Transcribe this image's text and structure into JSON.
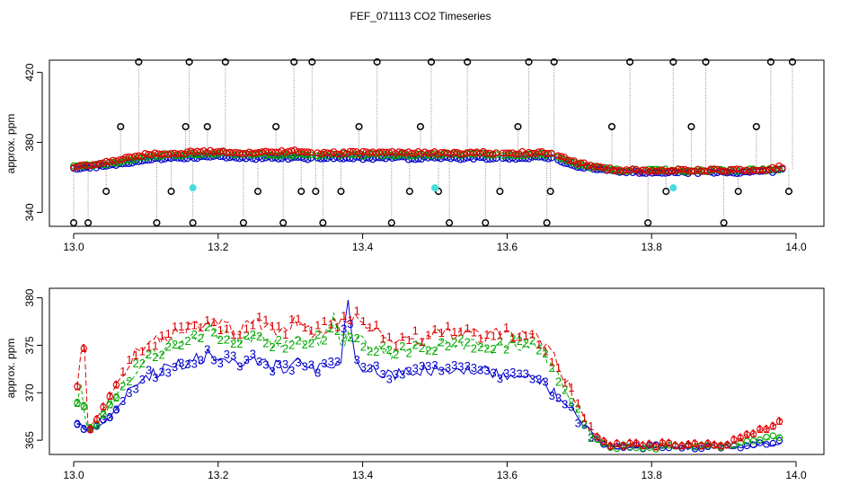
{
  "title": "FEF_071113  CO2 Timeseries",
  "colors": {
    "s1": "#dd0000",
    "s2": "#00aa00",
    "s3": "#0000cc",
    "outlier": "#000000",
    "flag": "#44dddd",
    "grey": "#888888"
  },
  "chart_data": [
    {
      "type": "scatter",
      "panel": "top",
      "title": "FEF_071113  CO2 Timeseries",
      "xlabel": "",
      "ylabel": "approx. ppm",
      "xlim": [
        13.0,
        14.0
      ],
      "ylim": [
        332,
        427
      ],
      "x_ticks": [
        "13.0",
        "13.2",
        "13.4",
        "13.6",
        "13.8",
        "14.0"
      ],
      "y_ticks": [
        "340",
        "380",
        "420"
      ],
      "y_tick_values": [
        340,
        380,
        420
      ],
      "series": [
        {
          "name": "1",
          "color": "#dd0000",
          "x": [
            13.0,
            13.05,
            13.1,
            13.15,
            13.2,
            13.25,
            13.3,
            13.33,
            13.38,
            13.45,
            13.5,
            13.55,
            13.6,
            13.66,
            13.7,
            13.75,
            13.8,
            13.85,
            13.9,
            13.95,
            13.98
          ],
          "y": [
            366,
            369,
            373,
            374,
            375,
            374,
            375,
            374,
            374,
            374,
            374,
            374,
            374,
            374,
            368,
            364,
            364,
            364,
            364,
            364,
            366
          ]
        },
        {
          "name": "2",
          "color": "#00aa00",
          "x": [
            13.0,
            13.05,
            13.1,
            13.15,
            13.2,
            13.25,
            13.3,
            13.33,
            13.38,
            13.45,
            13.5,
            13.55,
            13.6,
            13.66,
            13.7,
            13.75,
            13.8,
            13.85,
            13.9,
            13.95,
            13.98
          ],
          "y": [
            366,
            368,
            372,
            373,
            374,
            373,
            373,
            373,
            373,
            373,
            373,
            373,
            373,
            373,
            367,
            364,
            364,
            364,
            364,
            364,
            365
          ]
        },
        {
          "name": "3",
          "color": "#0000cc",
          "x": [
            13.0,
            13.05,
            13.1,
            13.15,
            13.2,
            13.25,
            13.3,
            13.33,
            13.38,
            13.45,
            13.5,
            13.55,
            13.6,
            13.66,
            13.7,
            13.75,
            13.8,
            13.85,
            13.9,
            13.95,
            13.98
          ],
          "y": [
            365,
            367,
            370,
            371,
            372,
            371,
            371,
            371,
            371,
            371,
            371,
            371,
            371,
            371,
            366,
            363,
            363,
            363,
            363,
            363,
            364
          ]
        }
      ],
      "outliers": {
        "x": [
          13.0,
          13.02,
          13.045,
          13.065,
          13.09,
          13.115,
          13.135,
          13.155,
          13.16,
          13.165,
          13.185,
          13.21,
          13.235,
          13.255,
          13.28,
          13.29,
          13.305,
          13.315,
          13.33,
          13.335,
          13.345,
          13.37,
          13.395,
          13.42,
          13.44,
          13.465,
          13.48,
          13.495,
          13.505,
          13.52,
          13.545,
          13.57,
          13.59,
          13.615,
          13.63,
          13.655,
          13.66,
          13.665,
          13.745,
          13.77,
          13.795,
          13.82,
          13.83,
          13.855,
          13.875,
          13.9,
          13.92,
          13.945,
          13.965,
          13.99,
          13.995
        ],
        "y": [
          334,
          334,
          352,
          389,
          426,
          334,
          352,
          389,
          426,
          334,
          389,
          426,
          334,
          352,
          389,
          334,
          426,
          352,
          426,
          352,
          334,
          352,
          389,
          426,
          334,
          352,
          389,
          426,
          352,
          334,
          426,
          334,
          352,
          389,
          426,
          334,
          352,
          426,
          389,
          426,
          334,
          352,
          426,
          389,
          426,
          334,
          352,
          389,
          426,
          352,
          426
        ]
      },
      "flagged": {
        "x": [
          13.165,
          13.5,
          13.83
        ],
        "y": [
          354,
          354,
          354
        ]
      }
    },
    {
      "type": "line",
      "panel": "bottom",
      "xlabel": "",
      "ylabel": "approx. ppm",
      "xlim": [
        13.0,
        14.0
      ],
      "ylim": [
        363.5,
        381
      ],
      "x_ticks": [
        "13.0",
        "13.2",
        "13.4",
        "13.6",
        "13.8",
        "14.0"
      ],
      "y_ticks": [
        "365",
        "370",
        "375",
        "380"
      ],
      "y_tick_values": [
        365,
        370,
        375,
        380
      ],
      "series": [
        {
          "name": "1",
          "color": "#dd0000",
          "marker": "1",
          "x": [
            13.005,
            13.01,
            13.015,
            13.02,
            13.03,
            13.05,
            13.07,
            13.09,
            13.11,
            13.13,
            13.15,
            13.17,
            13.19,
            13.21,
            13.23,
            13.25,
            13.27,
            13.29,
            13.31,
            13.33,
            13.35,
            13.37,
            13.39,
            13.41,
            13.43,
            13.45,
            13.47,
            13.49,
            13.51,
            13.53,
            13.55,
            13.57,
            13.59,
            13.61,
            13.63,
            13.65,
            13.67,
            13.69,
            13.71,
            13.73,
            13.75,
            13.78,
            13.82,
            13.85,
            13.88,
            13.91,
            13.93,
            13.95,
            13.97,
            13.98
          ],
          "y": [
            370.5,
            374,
            375,
            366,
            367,
            369.5,
            372.5,
            374.5,
            375.5,
            376,
            376.5,
            377,
            377.5,
            377,
            376.5,
            377.5,
            377,
            376.5,
            377.5,
            376,
            377,
            377.5,
            378,
            377,
            376,
            375,
            376,
            375.5,
            376.5,
            376,
            376.5,
            375.5,
            376.5,
            376,
            376.5,
            375,
            373,
            370,
            367,
            364.8,
            364.5,
            364.5,
            364.5,
            364.4,
            364.5,
            364.7,
            365.5,
            366,
            366.5,
            367.5
          ]
        },
        {
          "name": "2",
          "color": "#00aa00",
          "marker": "2",
          "x": [
            13.005,
            13.01,
            13.015,
            13.02,
            13.03,
            13.05,
            13.07,
            13.09,
            13.11,
            13.13,
            13.15,
            13.17,
            13.19,
            13.21,
            13.23,
            13.25,
            13.27,
            13.29,
            13.31,
            13.33,
            13.35,
            13.36,
            13.37,
            13.39,
            13.41,
            13.43,
            13.45,
            13.47,
            13.49,
            13.51,
            13.53,
            13.55,
            13.57,
            13.59,
            13.61,
            13.63,
            13.65,
            13.67,
            13.69,
            13.71,
            13.73,
            13.75,
            13.78,
            13.82,
            13.85,
            13.88,
            13.91,
            13.93,
            13.95,
            13.97,
            13.98
          ],
          "y": [
            369,
            371,
            368,
            366,
            366.5,
            368.5,
            371,
            373,
            374,
            375,
            375.5,
            376,
            376.5,
            376,
            375.5,
            376,
            375.5,
            375,
            376,
            375,
            376,
            378,
            375.5,
            376,
            375,
            374.5,
            374,
            375,
            374.5,
            375.5,
            375,
            375.5,
            374.5,
            375,
            375,
            375,
            374.5,
            371.5,
            369,
            366,
            364.6,
            364.3,
            364.3,
            364.3,
            364.2,
            364.3,
            364.4,
            364.7,
            365,
            365.3,
            365.5
          ]
        },
        {
          "name": "3",
          "color": "#0000cc",
          "marker": "3",
          "x": [
            13.005,
            13.01,
            13.015,
            13.02,
            13.03,
            13.05,
            13.07,
            13.09,
            13.11,
            13.13,
            13.15,
            13.17,
            13.19,
            13.21,
            13.23,
            13.25,
            13.27,
            13.29,
            13.31,
            13.33,
            13.35,
            13.37,
            13.38,
            13.39,
            13.41,
            13.43,
            13.45,
            13.47,
            13.49,
            13.51,
            13.53,
            13.55,
            13.57,
            13.59,
            13.61,
            13.63,
            13.65,
            13.67,
            13.69,
            13.71,
            13.73,
            13.75,
            13.78,
            13.82,
            13.85,
            13.88,
            13.91,
            13.93,
            13.95,
            13.97,
            13.98
          ],
          "y": [
            366.5,
            366.8,
            366.2,
            366,
            366.3,
            367.5,
            369.5,
            371,
            372,
            372.5,
            373,
            373.5,
            374,
            373.5,
            373,
            373.5,
            373,
            372.5,
            373,
            372.5,
            373,
            373.5,
            380,
            373,
            372.5,
            372,
            372,
            372,
            372.5,
            372,
            372.5,
            372,
            372.5,
            372,
            372,
            371.5,
            371,
            369.5,
            368,
            366,
            364.5,
            364.3,
            364.3,
            364.3,
            364.2,
            364.3,
            364.3,
            364.4,
            364.5,
            364.6,
            364.8
          ]
        }
      ]
    }
  ]
}
